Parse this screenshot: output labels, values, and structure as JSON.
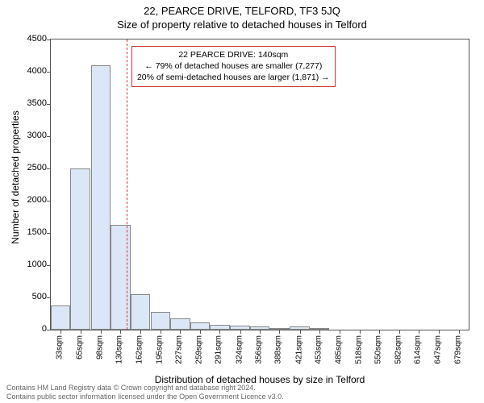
{
  "title": "22, PEARCE DRIVE, TELFORD, TF3 5JQ",
  "subtitle": "Size of property relative to detached houses in Telford",
  "ylabel": "Number of detached properties",
  "xlabel": "Distribution of detached houses by size in Telford",
  "chart": {
    "type": "histogram",
    "background_color": "#ffffff",
    "border_color": "#555555",
    "bar_fill": "#dbe7f6",
    "bar_stroke": "#888888",
    "refline_color": "#dd3333",
    "refline_x_sqm": 140,
    "annot_border": "#cc3333",
    "ylim": [
      0,
      4500
    ],
    "ytick_step": 500,
    "yticks": [
      0,
      500,
      1000,
      1500,
      2000,
      2500,
      3000,
      3500,
      4000,
      4500
    ],
    "xlim_sqm": [
      17,
      695
    ],
    "xticks_sqm": [
      33,
      65,
      98,
      130,
      162,
      195,
      227,
      259,
      291,
      324,
      356,
      388,
      421,
      453,
      485,
      518,
      550,
      582,
      614,
      647,
      679
    ],
    "xtick_suffix": "sqm",
    "bars": [
      {
        "x_sqm": 33,
        "value": 380
      },
      {
        "x_sqm": 65,
        "value": 2500
      },
      {
        "x_sqm": 98,
        "value": 4100
      },
      {
        "x_sqm": 130,
        "value": 1620
      },
      {
        "x_sqm": 162,
        "value": 550
      },
      {
        "x_sqm": 195,
        "value": 280
      },
      {
        "x_sqm": 227,
        "value": 170
      },
      {
        "x_sqm": 259,
        "value": 110
      },
      {
        "x_sqm": 291,
        "value": 80
      },
      {
        "x_sqm": 324,
        "value": 60
      },
      {
        "x_sqm": 356,
        "value": 50
      },
      {
        "x_sqm": 388,
        "value": 10
      },
      {
        "x_sqm": 421,
        "value": 55
      },
      {
        "x_sqm": 453,
        "value": 10
      },
      {
        "x_sqm": 485,
        "value": 0
      },
      {
        "x_sqm": 518,
        "value": 0
      },
      {
        "x_sqm": 550,
        "value": 0
      },
      {
        "x_sqm": 582,
        "value": 0
      },
      {
        "x_sqm": 614,
        "value": 0
      },
      {
        "x_sqm": 647,
        "value": 0
      },
      {
        "x_sqm": 679,
        "value": 0
      }
    ],
    "bar_width_sqm": 32,
    "title_fontsize": 13,
    "label_fontsize": 12,
    "tick_fontsize": 11
  },
  "annotation": {
    "line1": "22 PEARCE DRIVE: 140sqm",
    "line2": "← 79% of detached houses are smaller (7,277)",
    "line3": "20% of semi-detached houses are larger (1,871) →"
  },
  "footer": {
    "line1": "Contains HM Land Registry data © Crown copyright and database right 2024.",
    "line2": "Contains public sector information licensed under the Open Government Licence v3.0."
  }
}
